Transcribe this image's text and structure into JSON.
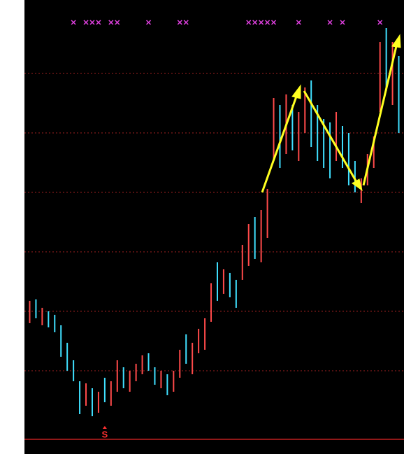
{
  "chart_data": {
    "type": "hilo",
    "ylim": [
      0,
      649
    ],
    "gridlines": [
      544,
      459,
      374,
      289,
      204,
      119
    ],
    "base_line": 21,
    "highs": [
      219,
      221,
      209,
      204,
      199,
      184,
      159,
      134,
      104,
      101,
      94,
      89,
      109,
      104,
      134,
      124,
      119,
      129,
      141,
      144,
      124,
      119,
      114,
      119,
      149,
      171,
      159,
      179,
      194,
      244,
      274,
      264,
      259,
      249,
      299,
      329,
      339,
      349,
      379,
      509,
      499,
      514,
      499,
      489,
      524,
      534,
      499,
      479,
      474,
      489,
      469,
      459,
      419,
      394,
      429,
      454,
      589,
      609,
      589,
      569
    ],
    "lows": [
      187,
      194,
      184,
      181,
      174,
      139,
      119,
      104,
      57,
      69,
      54,
      59,
      74,
      69,
      89,
      94,
      89,
      104,
      114,
      119,
      99,
      94,
      84,
      89,
      109,
      129,
      114,
      144,
      149,
      189,
      219,
      229,
      224,
      209,
      249,
      269,
      279,
      274,
      309,
      419,
      409,
      429,
      434,
      419,
      459,
      439,
      419,
      409,
      394,
      419,
      409,
      384,
      374,
      359,
      384,
      409,
      489,
      519,
      499,
      459
    ],
    "colors": [
      "#ff4a4a",
      "#40e0ff",
      "#ff4a4a",
      "#40e0ff",
      "#40e0ff",
      "#40e0ff",
      "#40e0ff",
      "#40e0ff",
      "#40e0ff",
      "#ff4a4a",
      "#40e0ff",
      "#ff4a4a",
      "#40e0ff",
      "#ff4a4a",
      "#ff4a4a",
      "#40e0ff",
      "#ff4a4a",
      "#ff4a4a",
      "#ff4a4a",
      "#40e0ff",
      "#40e0ff",
      "#ff4a4a",
      "#40e0ff",
      "#ff4a4a",
      "#ff4a4a",
      "#40e0ff",
      "#ff4a4a",
      "#ff4a4a",
      "#ff4a4a",
      "#ff4a4a",
      "#40e0ff",
      "#ff4a4a",
      "#40e0ff",
      "#40e0ff",
      "#ff4a4a",
      "#ff4a4a",
      "#40e0ff",
      "#ff4a4a",
      "#ff4a4a",
      "#ff4a4a",
      "#40e0ff",
      "#ff4a4a",
      "#40e0ff",
      "#ff4a4a",
      "#ff4a4a",
      "#40e0ff",
      "#40e0ff",
      "#40e0ff",
      "#40e0ff",
      "#ff4a4a",
      "#40e0ff",
      "#40e0ff",
      "#40e0ff",
      "#ff4a4a",
      "#ff4a4a",
      "#ff4a4a",
      "#ff4a4a",
      "#40e0ff",
      "#ff4a4a",
      "#40e0ff"
    ],
    "signal_bars": [
      7,
      9,
      10,
      11,
      13,
      14,
      19,
      24,
      25,
      35,
      36,
      37,
      38,
      39,
      43,
      48,
      50,
      56
    ],
    "signal_color": "#e040e0",
    "annotations": [
      {
        "text": "S",
        "bar": 12
      }
    ]
  }
}
